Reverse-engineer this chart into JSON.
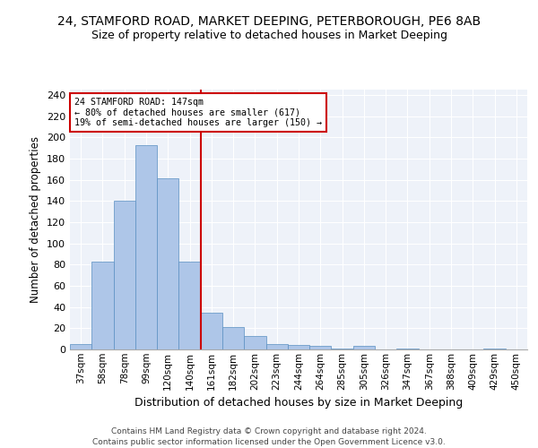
{
  "title": "24, STAMFORD ROAD, MARKET DEEPING, PETERBOROUGH, PE6 8AB",
  "subtitle": "Size of property relative to detached houses in Market Deeping",
  "xlabel": "Distribution of detached houses by size in Market Deeping",
  "ylabel": "Number of detached properties",
  "categories": [
    "37sqm",
    "58sqm",
    "78sqm",
    "99sqm",
    "120sqm",
    "140sqm",
    "161sqm",
    "182sqm",
    "202sqm",
    "223sqm",
    "244sqm",
    "264sqm",
    "285sqm",
    "305sqm",
    "326sqm",
    "347sqm",
    "367sqm",
    "388sqm",
    "409sqm",
    "429sqm",
    "450sqm"
  ],
  "values": [
    5,
    83,
    140,
    193,
    161,
    83,
    35,
    21,
    13,
    5,
    4,
    3,
    1,
    3,
    0,
    1,
    0,
    0,
    0,
    1,
    0
  ],
  "bar_color": "#aec6e8",
  "bar_edge_color": "#5a8fc2",
  "annotation_line1": "24 STAMFORD ROAD: 147sqm",
  "annotation_line2": "← 80% of detached houses are smaller (617)",
  "annotation_line3": "19% of semi-detached houses are larger (150) →",
  "vline_color": "#cc0000",
  "ylim": [
    0,
    245
  ],
  "yticks": [
    0,
    20,
    40,
    60,
    80,
    100,
    120,
    140,
    160,
    180,
    200,
    220,
    240
  ],
  "footer1": "Contains HM Land Registry data © Crown copyright and database right 2024.",
  "footer2": "Contains public sector information licensed under the Open Government Licence v3.0.",
  "bg_color": "#eef2f9",
  "title_fontsize": 10,
  "subtitle_fontsize": 9
}
